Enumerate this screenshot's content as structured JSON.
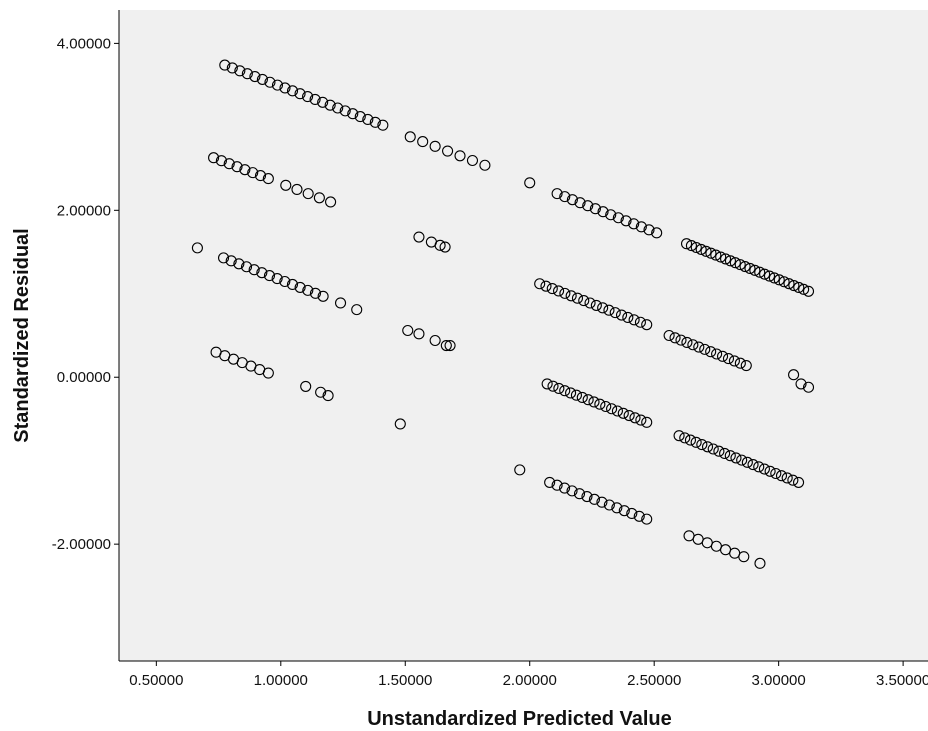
{
  "chart_data": {
    "type": "scatter",
    "title": "",
    "xlabel": "Unstandardized Predicted Value",
    "ylabel": "Standardized Residual",
    "xlim": [
      0.35,
      3.6
    ],
    "ylim": [
      -3.4,
      4.4
    ],
    "x_ticks": [
      0.5,
      1.0,
      1.5,
      2.0,
      2.5,
      3.0,
      3.5
    ],
    "x_tick_labels": [
      "0.50000",
      "1.00000",
      "1.50000",
      "2.00000",
      "2.50000",
      "3.00000",
      "3.50000"
    ],
    "y_ticks": [
      -2.0,
      0.0,
      2.0,
      4.0
    ],
    "y_tick_labels": [
      "-2.00000",
      "0.00000",
      "2.00000",
      "4.00000"
    ],
    "grid": false,
    "marker": "open-circle",
    "colors": {
      "plot_bg": "#f0f0f0",
      "marker_stroke": "#000000",
      "axis": "#000000"
    },
    "bands": [
      {
        "x0": 0.775,
        "y0": 3.74,
        "x1": 1.41,
        "y1": 3.02,
        "n": 22
      },
      {
        "x0": 1.52,
        "y0": 2.88,
        "x1": 1.82,
        "y1": 2.54,
        "n": 7
      },
      {
        "x0": 0.73,
        "y0": 2.63,
        "x1": 0.95,
        "y1": 2.38,
        "n": 8
      },
      {
        "x0": 1.02,
        "y0": 2.3,
        "x1": 1.2,
        "y1": 2.1,
        "n": 5
      },
      {
        "x0": 2.11,
        "y0": 2.2,
        "x1": 2.51,
        "y1": 1.73,
        "n": 14
      },
      {
        "x0": 2.63,
        "y0": 1.6,
        "x1": 3.12,
        "y1": 1.03,
        "n": 26
      },
      {
        "x0": 0.77,
        "y0": 1.43,
        "x1": 1.17,
        "y1": 0.97,
        "n": 14
      },
      {
        "x0": 2.04,
        "y0": 1.12,
        "x1": 2.47,
        "y1": 0.63,
        "n": 18
      },
      {
        "x0": 2.56,
        "y0": 0.5,
        "x1": 2.87,
        "y1": 0.14,
        "n": 14
      },
      {
        "x0": 0.74,
        "y0": 0.3,
        "x1": 0.95,
        "y1": 0.05,
        "n": 7
      },
      {
        "x0": 2.07,
        "y0": -0.08,
        "x1": 2.47,
        "y1": -0.54,
        "n": 18
      },
      {
        "x0": 2.6,
        "y0": -0.7,
        "x1": 3.08,
        "y1": -1.26,
        "n": 22
      },
      {
        "x0": 2.08,
        "y0": -1.26,
        "x1": 2.47,
        "y1": -1.7,
        "n": 14
      },
      {
        "x0": 2.64,
        "y0": -1.9,
        "x1": 2.86,
        "y1": -2.15,
        "n": 7
      }
    ],
    "points": [
      {
        "x": 0.665,
        "y": 1.55
      },
      {
        "x": 1.24,
        "y": 0.89
      },
      {
        "x": 1.305,
        "y": 0.81
      },
      {
        "x": 1.555,
        "y": 1.68
      },
      {
        "x": 1.605,
        "y": 1.62
      },
      {
        "x": 1.64,
        "y": 1.58
      },
      {
        "x": 1.66,
        "y": 1.56
      },
      {
        "x": 1.51,
        "y": 0.56
      },
      {
        "x": 1.555,
        "y": 0.52
      },
      {
        "x": 1.62,
        "y": 0.44
      },
      {
        "x": 1.665,
        "y": 0.38
      },
      {
        "x": 1.68,
        "y": 0.38
      },
      {
        "x": 1.1,
        "y": -0.11
      },
      {
        "x": 1.16,
        "y": -0.18
      },
      {
        "x": 1.19,
        "y": -0.22
      },
      {
        "x": 1.48,
        "y": -0.56
      },
      {
        "x": 2.0,
        "y": 2.33
      },
      {
        "x": 1.96,
        "y": -1.11
      },
      {
        "x": 2.925,
        "y": -2.23
      },
      {
        "x": 3.06,
        "y": 0.03
      },
      {
        "x": 3.09,
        "y": -0.08
      },
      {
        "x": 3.12,
        "y": -0.12
      }
    ]
  }
}
